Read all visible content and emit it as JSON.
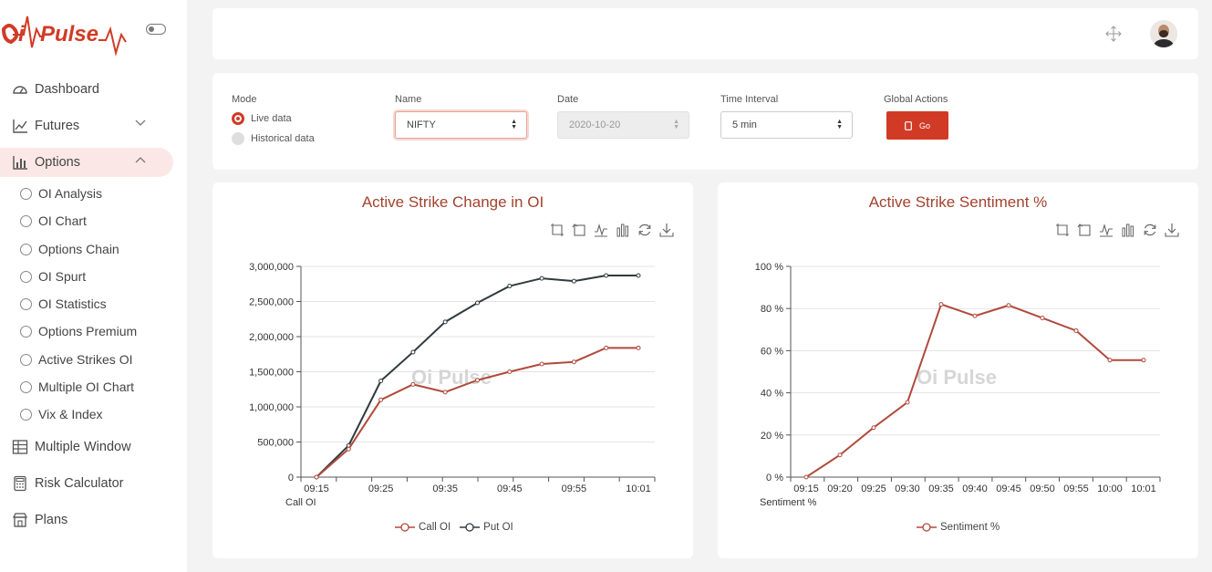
{
  "app": {
    "logo_text": "OiPulse",
    "brand_color": "#d13b26"
  },
  "sidebar": {
    "items": [
      {
        "label": "Dashboard",
        "icon": "dashboard-icon"
      },
      {
        "label": "Futures",
        "icon": "line-chart-icon"
      },
      {
        "label": "Options",
        "icon": "bar-chart-icon"
      },
      {
        "label": "Multiple Window",
        "icon": "table-icon"
      },
      {
        "label": "Risk Calculator",
        "icon": "calculator-icon"
      },
      {
        "label": "Plans",
        "icon": "store-icon"
      }
    ],
    "sub_items": [
      "OI Analysis",
      "OI Chart",
      "Options Chain",
      "OI Spurt",
      "OI Statistics",
      "Options Premium",
      "Active Strikes OI",
      "Multiple OI Chart",
      "Vix & Index"
    ]
  },
  "filters": {
    "mode_label": "Mode",
    "mode_live": "Live data",
    "mode_historical": "Historical data",
    "name_label": "Name",
    "name_value": "NIFTY",
    "date_label": "Date",
    "date_value": "2020-10-20",
    "interval_label": "Time Interval",
    "interval_value": "5 min",
    "actions_label": "Global Actions",
    "go_label": "Go"
  },
  "chart_data": [
    {
      "type": "line",
      "title": "Active Strike Change in OI",
      "watermark": "Oi Pulse",
      "x": [
        "09:15",
        "09:20",
        "09:25",
        "09:30",
        "09:35",
        "09:40",
        "09:45",
        "09:50",
        "09:55",
        "10:00",
        "10:01"
      ],
      "x_tick_labels": [
        "09:15",
        "09:25",
        "09:35",
        "09:45",
        "09:55",
        "10:01"
      ],
      "xlabel": "Call OI",
      "ylim": [
        0,
        3000000
      ],
      "y_tick_labels": [
        "0",
        "500,000",
        "1,000,000",
        "1,500,000",
        "2,000,000",
        "2,500,000",
        "3,000,000"
      ],
      "series": [
        {
          "name": "Call OI",
          "color": "#b04a3c",
          "values": [
            0,
            400000,
            1100000,
            1320000,
            1210000,
            1380000,
            1500000,
            1610000,
            1640000,
            1840000,
            1840000
          ]
        },
        {
          "name": "Put OI",
          "color": "#2f3b3e",
          "values": [
            0,
            450000,
            1370000,
            1780000,
            2210000,
            2480000,
            2720000,
            2830000,
            2790000,
            2870000,
            2870000
          ]
        }
      ]
    },
    {
      "type": "line",
      "title": "Active Strike Sentiment %",
      "watermark": "Oi Pulse",
      "x": [
        "09:15",
        "09:20",
        "09:25",
        "09:30",
        "09:35",
        "09:40",
        "09:45",
        "09:50",
        "09:55",
        "10:00",
        "10:01"
      ],
      "x_tick_labels": [
        "09:15",
        "09:20",
        "09:25",
        "09:30",
        "09:35",
        "09:40",
        "09:45",
        "09:50",
        "09:55",
        "10:00",
        "10:01"
      ],
      "xlabel": "Sentiment %",
      "ylim": [
        0,
        100
      ],
      "y_tick_labels": [
        "0 %",
        "20 %",
        "40 %",
        "60 %",
        "80 %",
        "100 %"
      ],
      "series": [
        {
          "name": "Sentiment %",
          "color": "#b04a3c",
          "values": [
            0,
            10.5,
            23.5,
            35.5,
            82,
            76.5,
            81.5,
            75.5,
            69.5,
            55.5,
            55.5
          ]
        }
      ]
    }
  ]
}
